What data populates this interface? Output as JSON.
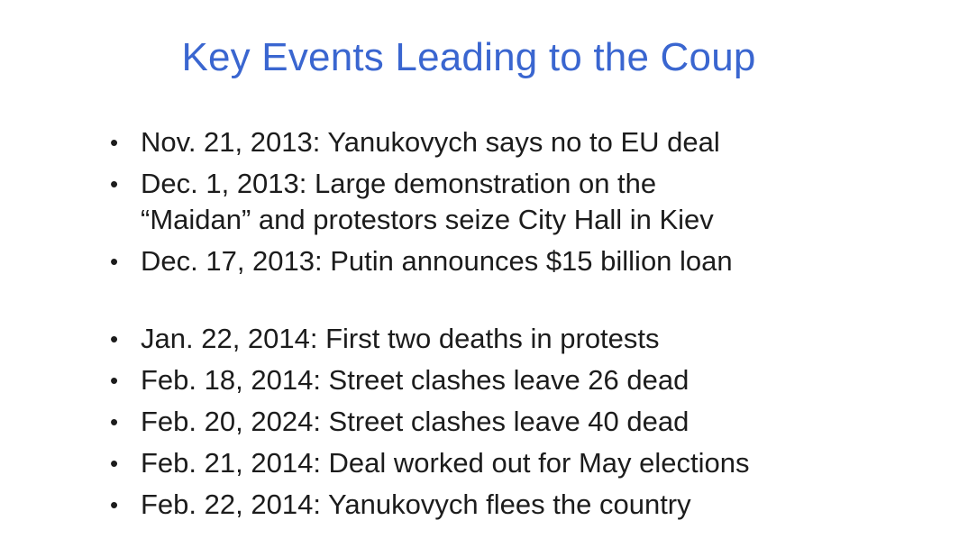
{
  "slide": {
    "title": "Key Events Leading to the Coup",
    "bullet_glyph": "•",
    "groups": [
      [
        [
          "Nov. 21, 2013: Yanukovych says no to EU deal"
        ],
        [
          "Dec. 1, 2013: Large demonstration on the",
          "“Maidan” and protestors seize City Hall in Kiev"
        ],
        [
          "Dec. 17, 2013: Putin announces $15 billion loan"
        ]
      ],
      [
        [
          "Jan. 22, 2014: First two deaths in protests"
        ],
        [
          "Feb. 18, 2014: Street clashes leave 26 dead"
        ],
        [
          "Feb. 20, 2024: Street clashes leave 40 dead"
        ],
        [
          "Feb. 21, 2014: Deal worked out for May elections"
        ],
        [
          "Feb. 22, 2014: Yanukovych flees the country"
        ]
      ]
    ],
    "colors": {
      "title": "#3a66d0",
      "body": "#1c1c1c",
      "background": "#ffffff"
    }
  }
}
